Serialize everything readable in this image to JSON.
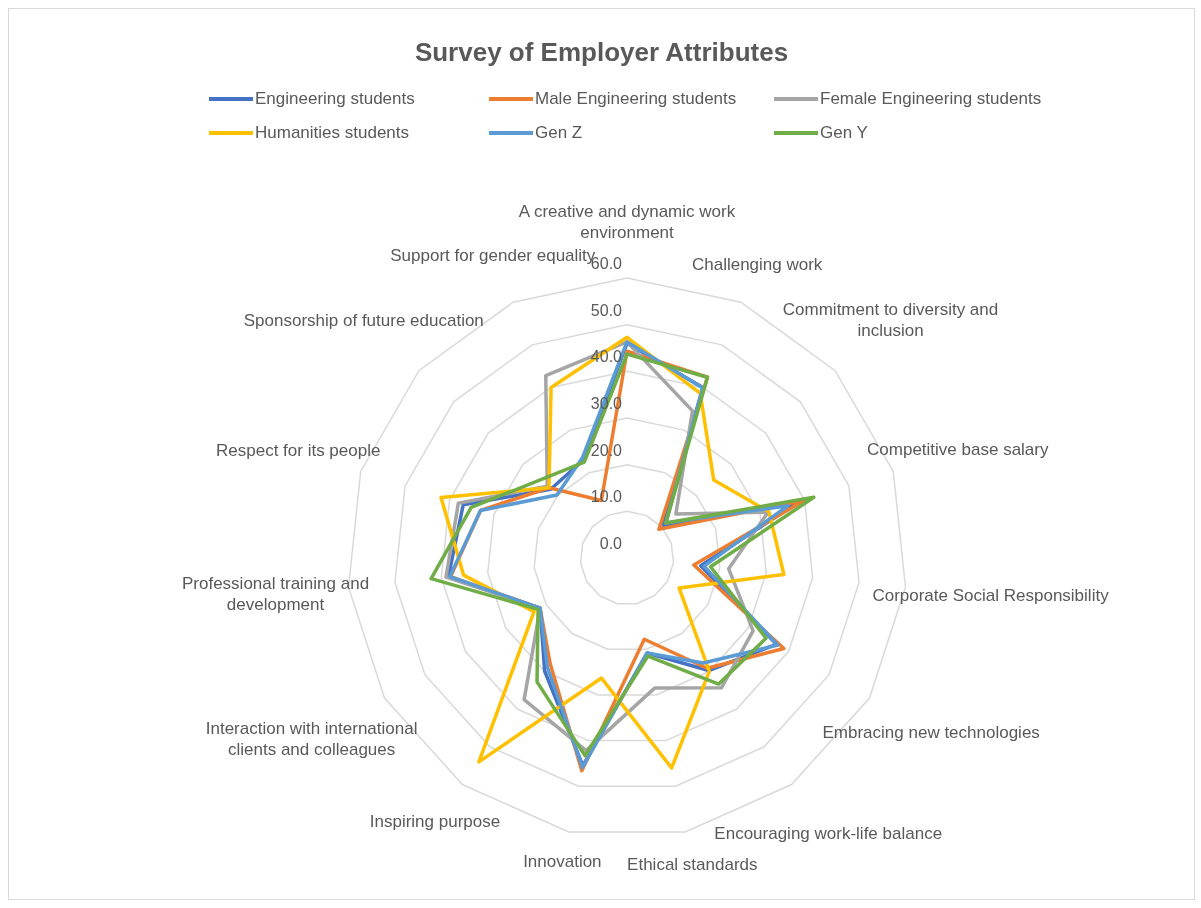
{
  "chart_data": {
    "type": "radar",
    "title": "Survey of Employer Attributes",
    "categories": [
      "A creative and dynamic work environment",
      "Challenging work",
      "Commitment to diversity and inclusion",
      "Competitive base salary",
      "Corporate Social Responsibility",
      "Embracing new technologies",
      "Encouraging work-life balance",
      "Ethical standards",
      "Innovation",
      "Inspiring purpose",
      "Interaction with international clients and colleagues",
      "Professional training and development",
      "Respect for its people",
      "Sponsorship of future education",
      "Support for gender equality"
    ],
    "series": [
      {
        "name": "Engineering students",
        "color": "#4472c4",
        "values": [
          46,
          40,
          10.5,
          38.5,
          15.9,
          37,
          29.8,
          20.8,
          45.5,
          30,
          21.5,
          38.5,
          36.9,
          22,
          23
        ]
      },
      {
        "name": "Male Engineering students",
        "color": "#ed7d31",
        "values": [
          44.3,
          42.4,
          9.2,
          39.9,
          14.4,
          38.8,
          29.2,
          17.8,
          46.6,
          28,
          21.5,
          38,
          33,
          22.5,
          13.5
        ]
      },
      {
        "name": "Female Engineering students",
        "color": "#a5a5a5",
        "values": [
          46.3,
          34.5,
          14.1,
          31.8,
          21.9,
          31.2,
          34.4,
          28.5,
          42.2,
          37.5,
          21.5,
          39,
          38,
          23,
          42.8
        ]
      },
      {
        "name": "Humanities students",
        "color": "#ffc000",
        "values": [
          47.3,
          38.6,
          25,
          32,
          33.8,
          12.9,
          30,
          46,
          26.3,
          54,
          23,
          35.2,
          41.9,
          22.5,
          40
        ]
      },
      {
        "name": "Gen Z",
        "color": "#5b9bd5",
        "values": [
          46.3,
          39.9,
          11.2,
          36.3,
          16.6,
          37.3,
          27.8,
          20.8,
          45.9,
          29,
          21.5,
          38.2,
          33,
          20.2,
          23.5
        ]
      },
      {
        "name": "Gen Y",
        "color": "#70ad47",
        "values": [
          43.7,
          42.4,
          11.2,
          42.1,
          18,
          34.4,
          33.4,
          21.5,
          43.3,
          32.8,
          22,
          42.2,
          35.1,
          25,
          22.5
        ]
      }
    ],
    "ylim": [
      0,
      60
    ],
    "yticks": [
      {
        "value": 0,
        "label": "0.0"
      },
      {
        "value": 10,
        "label": "10.0"
      },
      {
        "value": 20,
        "label": "20.0"
      },
      {
        "value": 30,
        "label": "30.0"
      },
      {
        "value": 40,
        "label": "40.0"
      },
      {
        "value": 50,
        "label": "50.0"
      },
      {
        "value": 60,
        "label": "60.0"
      }
    ],
    "grid": true,
    "legend": "top"
  }
}
